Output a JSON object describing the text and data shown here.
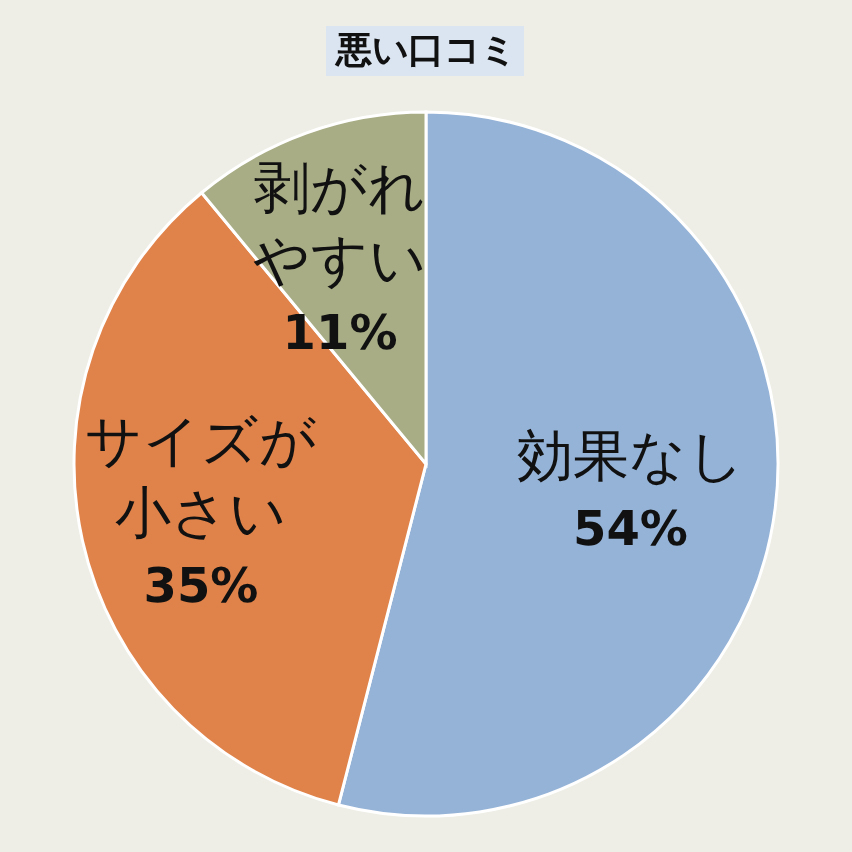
{
  "chart_data": {
    "type": "pie",
    "title": "悪い口コミ",
    "categories": [
      "効果なし",
      "サイズが小さい",
      "剥がれやすい"
    ],
    "values": [
      54,
      35,
      11
    ],
    "value_labels": [
      "54%",
      "35%",
      "11%"
    ],
    "colors": [
      "#95b3d7",
      "#e0834a",
      "#a8ad85"
    ]
  }
}
